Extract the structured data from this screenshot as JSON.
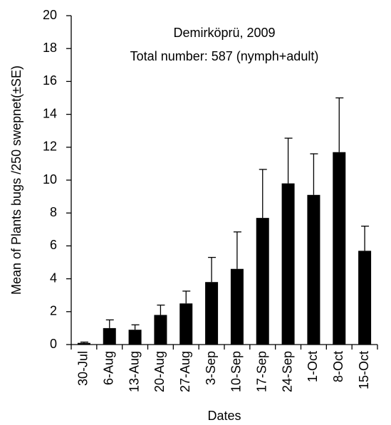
{
  "chart_data": {
    "type": "bar",
    "annotations": [
      "Demirköprü, 2009",
      "Total number: 587 (nymph+adult)"
    ],
    "y_label": "Mean of Plants bugs /250 swepnet(±SE)",
    "x_label": "Dates",
    "categories": [
      "30-Jul",
      "6-Aug",
      "13-Aug",
      "20-Aug",
      "27-Aug",
      "3-Sep",
      "10-Sep",
      "17-Sep",
      "24-Sep",
      "1-Oct",
      "8-Oct",
      "15-Oct"
    ],
    "values": [
      0.1,
      1.0,
      0.9,
      1.8,
      2.5,
      3.8,
      4.6,
      7.7,
      9.8,
      9.1,
      11.7,
      5.7
    ],
    "errors": [
      0.05,
      0.5,
      0.3,
      0.6,
      0.75,
      1.5,
      2.25,
      2.95,
      2.75,
      2.5,
      3.3,
      1.5
    ],
    "color": "#000000",
    "ylim": [
      0,
      20
    ],
    "yticks": [
      0,
      2,
      4,
      6,
      8,
      10,
      12,
      14,
      16,
      18,
      20
    ],
    "grid": false
  }
}
